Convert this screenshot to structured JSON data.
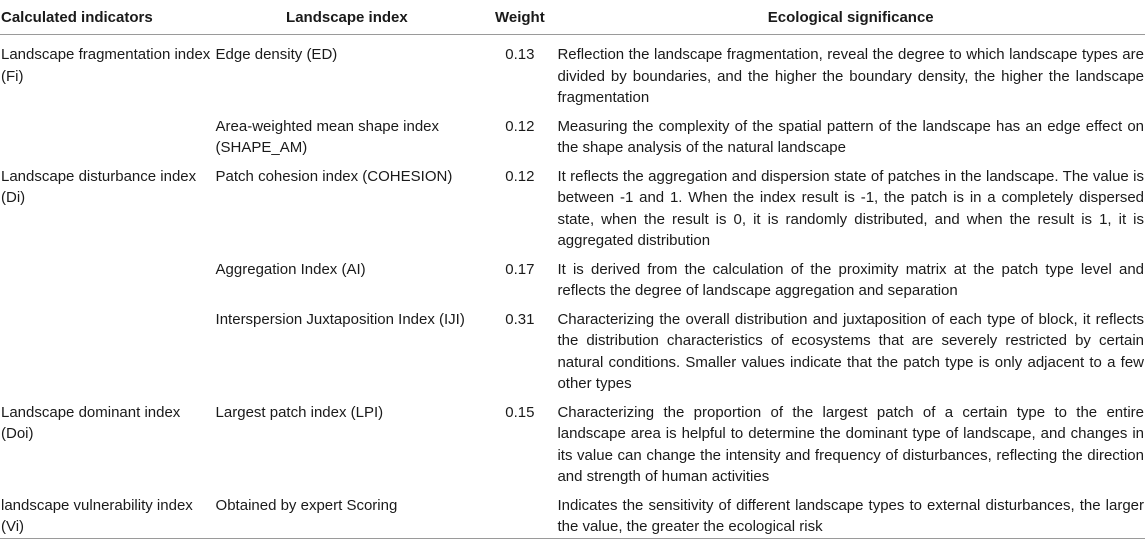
{
  "table": {
    "headers": [
      "Calculated indicators",
      "Landscape index",
      "Weight",
      "Ecological significance"
    ],
    "rows": [
      {
        "indicator": "Landscape fragmentation index (Fi)",
        "index": "Edge density (ED)",
        "weight": "0.13",
        "significance": "Reflection the landscape fragmentation, reveal the degree to which landscape types are divided by boundaries, and the higher the boundary density, the higher the landscape fragmentation"
      },
      {
        "indicator": "",
        "index": "Area-weighted mean shape index (SHAPE_AM)",
        "weight": "0.12",
        "significance": "Measuring the complexity of the spatial pattern of the landscape has an edge effect on the shape analysis of the natural landscape"
      },
      {
        "indicator": "Landscape disturbance index (Di)",
        "index": "Patch cohesion index (COHESION)",
        "weight": "0.12",
        "significance": "It reflects the aggregation and dispersion state of patches in the landscape. The value is between -1 and 1. When the index result is -1, the patch is in a completely dispersed state, when the result is 0, it is randomly distributed, and when the result is 1, it is aggregated distribution"
      },
      {
        "indicator": "",
        "index": "Aggregation Index (AI)",
        "weight": "0.17",
        "significance": "It is derived from the calculation of the proximity matrix at the patch type level and reflects the degree of landscape aggregation and separation"
      },
      {
        "indicator": "",
        "index": "Interspersion Juxtaposition Index (IJI)",
        "weight": "0.31",
        "significance": "Characterizing the overall distribution and juxtaposition of each type of block, it reflects the distribution characteristics of ecosystems that are severely restricted by certain natural conditions. Smaller values indicate that the patch type is only adjacent to a few other types"
      },
      {
        "indicator": "Landscape dominant index (Doi)",
        "index": "Largest patch index (LPI)",
        "weight": "0.15",
        "significance": "Characterizing the proportion of the largest patch of a certain type to the entire landscape area is helpful to determine the dominant type of landscape, and changes in its value can change the intensity and frequency of disturbances, reflecting the direction and strength of human activities"
      },
      {
        "indicator": "landscape vulnerability index (Vi)",
        "index": "Obtained by expert Scoring",
        "weight": "",
        "significance": "Indicates the sensitivity of different landscape types to external disturbances, the larger the value, the greater the ecological risk"
      }
    ]
  }
}
